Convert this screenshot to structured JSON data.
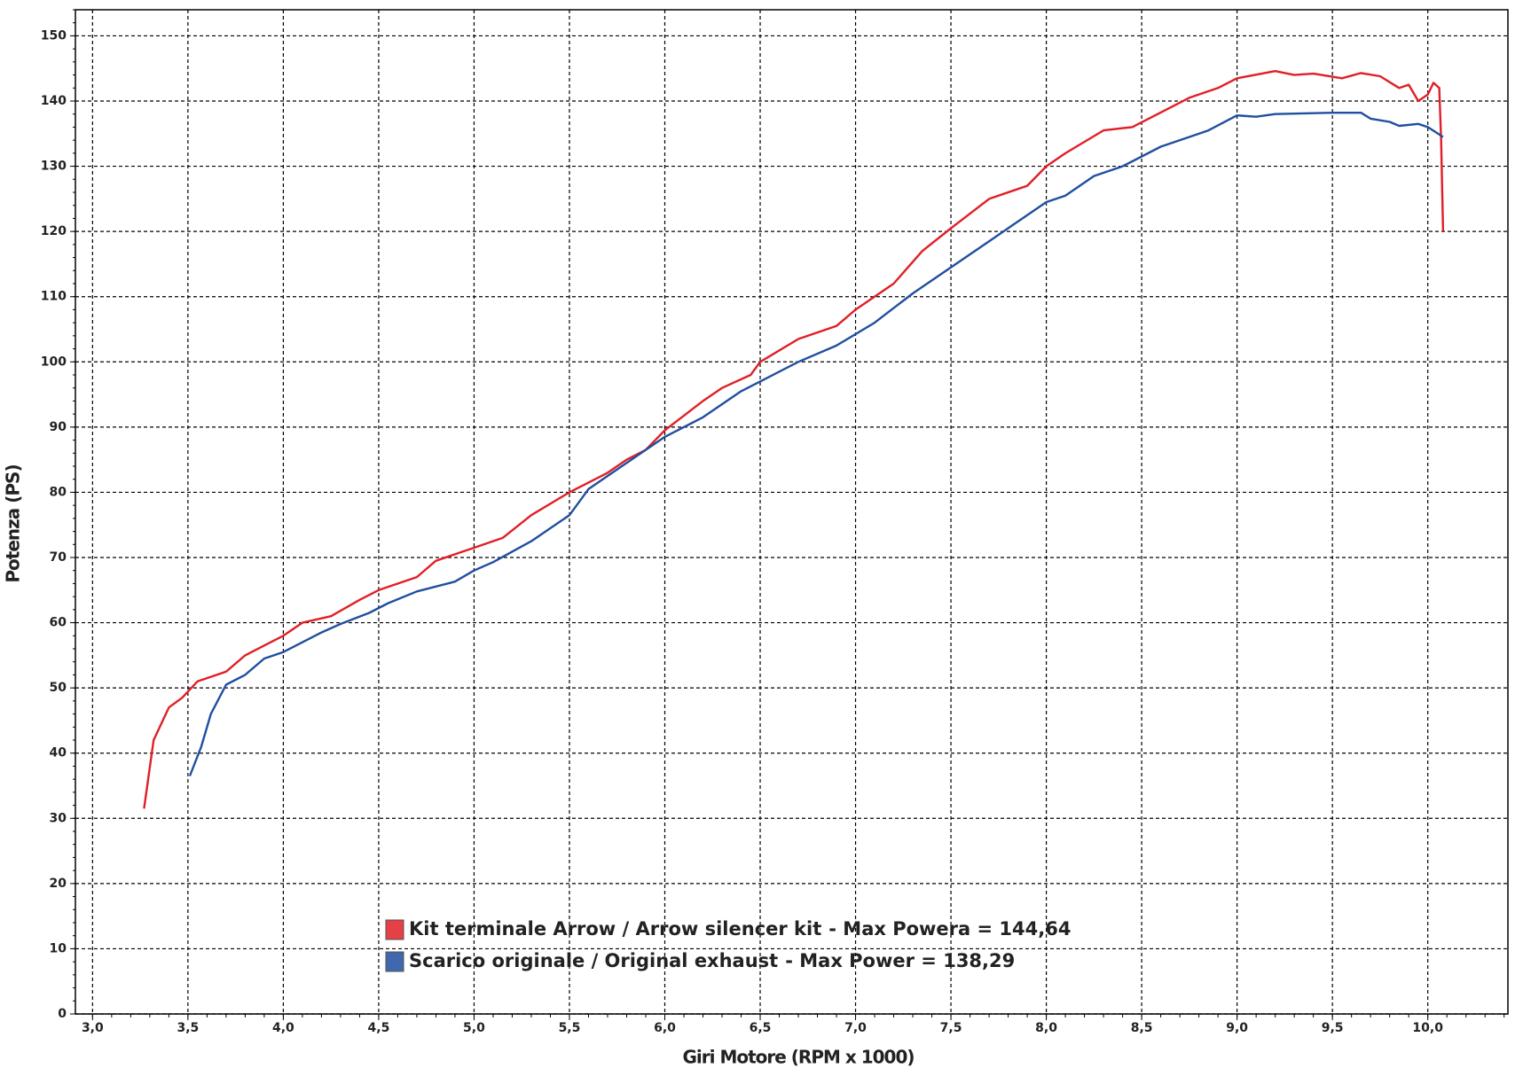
{
  "chart_data": {
    "type": "line",
    "xlabel": "Giri Motore (RPM x 1000)",
    "ylabel": "Potenza (PS)",
    "xlim": [
      2.91,
      10.42
    ],
    "ylim": [
      0,
      154
    ],
    "xticks": [
      {
        "value": 3,
        "label": "3,0"
      },
      {
        "value": 3.5,
        "label": "3,5"
      },
      {
        "value": 4,
        "label": "4,0"
      },
      {
        "value": 4.5,
        "label": "4,5"
      },
      {
        "value": 5,
        "label": "5,0"
      },
      {
        "value": 5.5,
        "label": "5,5"
      },
      {
        "value": 6,
        "label": "6,0"
      },
      {
        "value": 6.5,
        "label": "6,5"
      },
      {
        "value": 7,
        "label": "7,0"
      },
      {
        "value": 7.5,
        "label": "7,5"
      },
      {
        "value": 8,
        "label": "8,0"
      },
      {
        "value": 8.5,
        "label": "8,5"
      },
      {
        "value": 9,
        "label": "9,0"
      },
      {
        "value": 9.5,
        "label": "9,5"
      },
      {
        "value": 10,
        "label": "10,0"
      }
    ],
    "yticks": [
      0,
      10,
      20,
      30,
      40,
      50,
      60,
      70,
      80,
      90,
      100,
      110,
      120,
      130,
      140,
      150
    ],
    "grid": true,
    "series": [
      {
        "name": "Kit terminale Arrow / Arrow silencer kit",
        "max_label": "- Max Powera = 144,64",
        "color": "#e01f26",
        "x": [
          3.27,
          3.32,
          3.4,
          3.47,
          3.55,
          3.7,
          3.8,
          3.9,
          4.0,
          4.1,
          4.25,
          4.4,
          4.5,
          4.7,
          4.8,
          5.0,
          5.15,
          5.3,
          5.5,
          5.7,
          5.8,
          5.9,
          6.0,
          6.2,
          6.3,
          6.45,
          6.5,
          6.7,
          6.9,
          7.0,
          7.2,
          7.35,
          7.5,
          7.7,
          7.9,
          8.0,
          8.1,
          8.3,
          8.45,
          8.55,
          8.75,
          8.9,
          9.0,
          9.2,
          9.3,
          9.4,
          9.55,
          9.65,
          9.75,
          9.85,
          9.9,
          9.95,
          10.0,
          10.03,
          10.06,
          10.07,
          10.08
        ],
        "values": [
          31.5,
          42,
          47,
          48.5,
          51,
          52.5,
          55,
          56.5,
          58,
          60,
          61,
          63.5,
          65,
          67,
          69.5,
          71.5,
          73,
          76.5,
          80,
          83,
          85,
          86.5,
          89.5,
          94,
          96,
          98,
          100,
          103.5,
          105.5,
          108,
          112,
          117,
          120.5,
          125,
          127,
          130,
          132,
          135.5,
          136,
          137.5,
          140.5,
          142,
          143.5,
          144.6,
          144,
          144.2,
          143.5,
          144.3,
          143.8,
          142,
          142.5,
          140,
          141,
          142.8,
          142,
          134,
          120
        ]
      },
      {
        "name": "Scarico originale / Original exhaust",
        "max_label": "- Max Power = 138,29",
        "color": "#1f4f9f",
        "x": [
          3.51,
          3.57,
          3.62,
          3.7,
          3.8,
          3.9,
          4.0,
          4.2,
          4.3,
          4.45,
          4.55,
          4.7,
          4.9,
          5.0,
          5.1,
          5.3,
          5.5,
          5.6,
          5.8,
          6.0,
          6.2,
          6.4,
          6.5,
          6.7,
          6.9,
          7.1,
          7.3,
          7.5,
          7.7,
          7.85,
          8.0,
          8.1,
          8.25,
          8.4,
          8.6,
          8.75,
          8.85,
          9.0,
          9.1,
          9.2,
          9.5,
          9.65,
          9.7,
          9.8,
          9.85,
          9.95,
          10.0,
          10.08
        ],
        "values": [
          36.5,
          41,
          46,
          50.5,
          52,
          54.5,
          55.5,
          58.5,
          59.8,
          61.5,
          63,
          64.8,
          66.3,
          68,
          69.3,
          72.5,
          76.5,
          80.5,
          84.5,
          88.5,
          91.5,
          95.5,
          97,
          100,
          102.5,
          106,
          110.5,
          114.5,
          118.5,
          121.5,
          124.5,
          125.5,
          128.5,
          130,
          133,
          134.5,
          135.5,
          137.8,
          137.6,
          138,
          138.2,
          138.2,
          137.3,
          136.8,
          136.2,
          136.5,
          136,
          134.5
        ]
      }
    ]
  }
}
